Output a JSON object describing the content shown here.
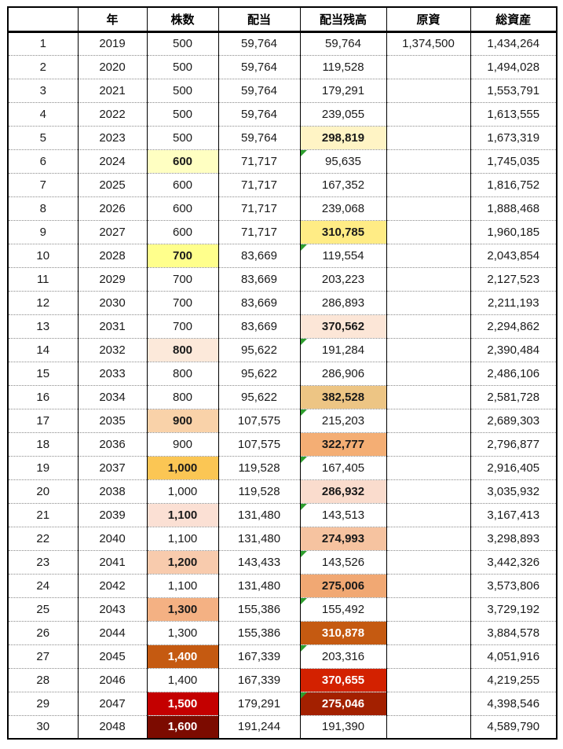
{
  "colors": {
    "grid_border": "#000000",
    "dotted_line": "#8a8a8a",
    "flag_green": "#2e9e2e"
  },
  "table": {
    "headers": [
      "",
      "年",
      "株数",
      "配当",
      "配当残高",
      "原資",
      "総資産"
    ],
    "rows": [
      {
        "no": "1",
        "year": "2019",
        "shares": "500",
        "dividend": "59,764",
        "balance": "59,764",
        "principal": "1,374,500",
        "total": "1,434,264"
      },
      {
        "no": "2",
        "year": "2020",
        "shares": "500",
        "dividend": "59,764",
        "balance": "119,528",
        "principal": "",
        "total": "1,494,028"
      },
      {
        "no": "3",
        "year": "2021",
        "shares": "500",
        "dividend": "59,764",
        "balance": "179,291",
        "principal": "",
        "total": "1,553,791"
      },
      {
        "no": "4",
        "year": "2022",
        "shares": "500",
        "dividend": "59,764",
        "balance": "239,055",
        "principal": "",
        "total": "1,613,555"
      },
      {
        "no": "5",
        "year": "2023",
        "shares": "500",
        "dividend": "59,764",
        "balance": "298,819",
        "principal": "",
        "total": "1,673,319",
        "balance_bg": "#FFF4C5"
      },
      {
        "no": "6",
        "year": "2024",
        "shares": "600",
        "dividend": "71,717",
        "balance": "95,635",
        "principal": "",
        "total": "1,745,035",
        "shares_bg": "#FFFFC2",
        "flag": true
      },
      {
        "no": "7",
        "year": "2025",
        "shares": "600",
        "dividend": "71,717",
        "balance": "167,352",
        "principal": "",
        "total": "1,816,752"
      },
      {
        "no": "8",
        "year": "2026",
        "shares": "600",
        "dividend": "71,717",
        "balance": "239,068",
        "principal": "",
        "total": "1,888,468"
      },
      {
        "no": "9",
        "year": "2027",
        "shares": "600",
        "dividend": "71,717",
        "balance": "310,785",
        "principal": "",
        "total": "1,960,185",
        "balance_bg": "#FFEC85"
      },
      {
        "no": "10",
        "year": "2028",
        "shares": "700",
        "dividend": "83,669",
        "balance": "119,554",
        "principal": "",
        "total": "2,043,854",
        "shares_bg": "#FFFF8C",
        "flag": true
      },
      {
        "no": "11",
        "year": "2029",
        "shares": "700",
        "dividend": "83,669",
        "balance": "203,223",
        "principal": "",
        "total": "2,127,523"
      },
      {
        "no": "12",
        "year": "2030",
        "shares": "700",
        "dividend": "83,669",
        "balance": "286,893",
        "principal": "",
        "total": "2,211,193"
      },
      {
        "no": "13",
        "year": "2031",
        "shares": "700",
        "dividend": "83,669",
        "balance": "370,562",
        "principal": "",
        "total": "2,294,862",
        "balance_bg": "#FCE6D7"
      },
      {
        "no": "14",
        "year": "2032",
        "shares": "800",
        "dividend": "95,622",
        "balance": "191,284",
        "principal": "",
        "total": "2,390,484",
        "shares_bg": "#FCE9DA",
        "flag": true
      },
      {
        "no": "15",
        "year": "2033",
        "shares": "800",
        "dividend": "95,622",
        "balance": "286,906",
        "principal": "",
        "total": "2,486,106"
      },
      {
        "no": "16",
        "year": "2034",
        "shares": "800",
        "dividend": "95,622",
        "balance": "382,528",
        "principal": "",
        "total": "2,581,728",
        "balance_bg": "#EDC584"
      },
      {
        "no": "17",
        "year": "2035",
        "shares": "900",
        "dividend": "107,575",
        "balance": "215,203",
        "principal": "",
        "total": "2,689,303",
        "shares_bg": "#F9D2A9",
        "flag": true
      },
      {
        "no": "18",
        "year": "2036",
        "shares": "900",
        "dividend": "107,575",
        "balance": "322,777",
        "principal": "",
        "total": "2,796,877",
        "balance_bg": "#F4AE74"
      },
      {
        "no": "19",
        "year": "2037",
        "shares": "1,000",
        "dividend": "119,528",
        "balance": "167,405",
        "principal": "",
        "total": "2,916,405",
        "shares_bg": "#FBC654",
        "flag": true
      },
      {
        "no": "20",
        "year": "2038",
        "shares": "1,000",
        "dividend": "119,528",
        "balance": "286,932",
        "principal": "",
        "total": "3,035,932",
        "balance_bg": "#FADCCD"
      },
      {
        "no": "21",
        "year": "2039",
        "shares": "1,100",
        "dividend": "131,480",
        "balance": "143,513",
        "principal": "",
        "total": "3,167,413",
        "shares_bg": "#FBE0D4",
        "flag": true
      },
      {
        "no": "22",
        "year": "2040",
        "shares": "1,100",
        "dividend": "131,480",
        "balance": "274,993",
        "principal": "",
        "total": "3,298,893",
        "balance_bg": "#F6C3A0"
      },
      {
        "no": "23",
        "year": "2041",
        "shares": "1,200",
        "dividend": "143,433",
        "balance": "143,526",
        "principal": "",
        "total": "3,442,326",
        "shares_bg": "#F8CBAD",
        "flag": true
      },
      {
        "no": "24",
        "year": "2042",
        "shares": "1,100",
        "dividend": "131,480",
        "balance": "275,006",
        "principal": "",
        "total": "3,573,806",
        "balance_bg": "#F1A873"
      },
      {
        "no": "25",
        "year": "2043",
        "shares": "1,300",
        "dividend": "155,386",
        "balance": "155,492",
        "principal": "",
        "total": "3,729,192",
        "shares_bg": "#F4B183",
        "flag": true
      },
      {
        "no": "26",
        "year": "2044",
        "shares": "1,300",
        "dividend": "155,386",
        "balance": "310,878",
        "principal": "",
        "total": "3,884,578",
        "balance_bg": "#C55A11",
        "balance_fg": "#FFFFFF"
      },
      {
        "no": "27",
        "year": "2045",
        "shares": "1,400",
        "dividend": "167,339",
        "balance": "203,316",
        "principal": "",
        "total": "4,051,916",
        "shares_bg": "#C55A11",
        "shares_fg": "#FFFFFF",
        "flag": true
      },
      {
        "no": "28",
        "year": "2046",
        "shares": "1,400",
        "dividend": "167,339",
        "balance": "370,655",
        "principal": "",
        "total": "4,219,255",
        "balance_bg": "#D32100",
        "balance_fg": "#FFFFFF"
      },
      {
        "no": "29",
        "year": "2047",
        "shares": "1,500",
        "dividend": "179,291",
        "balance": "275,046",
        "principal": "",
        "total": "4,398,546",
        "shares_bg": "#C40000",
        "shares_fg": "#FFFFFF",
        "balance_bg": "#A32000",
        "balance_fg": "#FFFFFF",
        "flag": true
      },
      {
        "no": "30",
        "year": "2048",
        "shares": "1,600",
        "dividend": "191,244",
        "balance": "191,390",
        "principal": "",
        "total": "4,589,790",
        "shares_bg": "#7C0B00",
        "shares_fg": "#FFFFFF"
      }
    ]
  }
}
